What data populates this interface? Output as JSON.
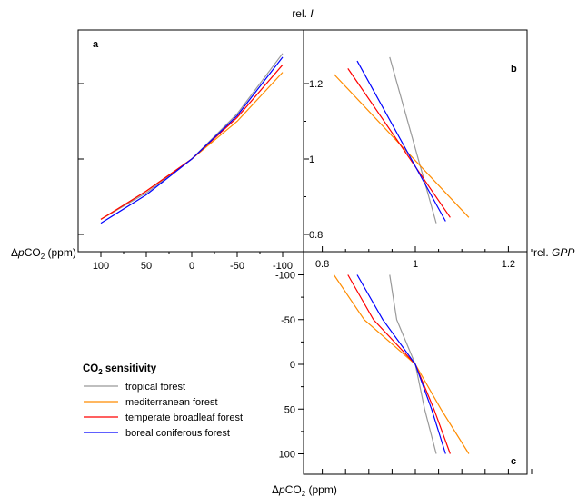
{
  "chart_data": [
    {
      "panel": "a",
      "type": "line",
      "x": [
        100,
        50,
        0,
        -50,
        -100
      ],
      "xlabel": "ΔpCO₂ (ppm)",
      "xticks": [
        "100",
        "50",
        "0",
        "-50",
        "-100"
      ],
      "ylabel": "rel. I",
      "ylim": [
        0.78,
        1.29
      ],
      "series": [
        {
          "name": "tropical forest",
          "values": [
            0.84,
            0.91,
            1.0,
            1.12,
            1.28
          ]
        },
        {
          "name": "mediterranean forest",
          "values": [
            0.84,
            0.915,
            1.0,
            1.1,
            1.23
          ]
        },
        {
          "name": "temperate broadleaf forest",
          "values": [
            0.84,
            0.915,
            1.0,
            1.11,
            1.25
          ]
        },
        {
          "name": "boreal coniferous forest",
          "values": [
            0.83,
            0.905,
            1.0,
            1.115,
            1.27
          ]
        }
      ]
    },
    {
      "panel": "b",
      "type": "line",
      "xlabel": "rel. GPP",
      "ylabel": "rel. I",
      "xticks": [
        "0.8",
        "1",
        "1.2"
      ],
      "yticks": [
        "0.8",
        "1",
        "1.2"
      ],
      "xlim": [
        0.78,
        1.26
      ],
      "ylim": [
        0.78,
        1.29
      ],
      "series": [
        {
          "name": "tropical forest",
          "points": [
            [
              0.945,
              1.27
            ],
            [
              1.045,
              0.83
            ]
          ]
        },
        {
          "name": "mediterranean forest",
          "points": [
            [
              0.825,
              1.225
            ],
            [
              1.115,
              0.845
            ]
          ]
        },
        {
          "name": "temperate broadleaf forest",
          "points": [
            [
              0.855,
              1.24
            ],
            [
              1.075,
              0.845
            ]
          ]
        },
        {
          "name": "boreal coniferous forest",
          "points": [
            [
              0.875,
              1.26
            ],
            [
              1.065,
              0.835
            ]
          ]
        }
      ]
    },
    {
      "panel": "c",
      "type": "line",
      "xlabel": "rel. GPP",
      "ylabel": "ΔpCO₂ (ppm)",
      "yticks": [
        "-100",
        "-50",
        "0",
        "50",
        "100"
      ],
      "xlim": [
        0.78,
        1.26
      ],
      "ylim": [
        -106,
        128
      ],
      "series": [
        {
          "name": "tropical forest",
          "points": [
            [
              0.945,
              -100
            ],
            [
              0.96,
              -50
            ],
            [
              1.0,
              0
            ],
            [
              1.02,
              50
            ],
            [
              1.045,
              100
            ]
          ]
        },
        {
          "name": "mediterranean forest",
          "points": [
            [
              0.825,
              -100
            ],
            [
              0.89,
              -50
            ],
            [
              1.0,
              0
            ],
            [
              1.055,
              50
            ],
            [
              1.115,
              100
            ]
          ]
        },
        {
          "name": "temperate broadleaf forest",
          "points": [
            [
              0.855,
              -100
            ],
            [
              0.91,
              -50
            ],
            [
              1.0,
              0
            ],
            [
              1.04,
              50
            ],
            [
              1.075,
              100
            ]
          ]
        },
        {
          "name": "boreal coniferous forest",
          "points": [
            [
              0.875,
              -100
            ],
            [
              0.93,
              -50
            ],
            [
              1.0,
              0
            ],
            [
              1.035,
              50
            ],
            [
              1.065,
              100
            ]
          ]
        }
      ]
    }
  ],
  "colors": {
    "tropical forest": "#999999",
    "mediterranean forest": "#ff8c00",
    "temperate broadleaf forest": "#ff0000",
    "boreal coniferous forest": "#0000ff"
  },
  "labels": {
    "top_axis": "rel.",
    "top_axis_italic": "I",
    "right_axis": "rel.",
    "right_axis_italic": "GPP",
    "panel_a": "a",
    "panel_b": "b",
    "panel_c": "c",
    "left_axis_delta": "Δ",
    "left_axis_p": "p",
    "left_axis_co": "CO",
    "left_axis_sub": "2",
    "left_axis_unit": " (ppm)",
    "bottom_axis_delta": "Δ",
    "bottom_axis_p": "p",
    "bottom_axis_co": "CO",
    "bottom_axis_sub": "2",
    "bottom_axis_unit": " (ppm)"
  },
  "legend": {
    "title_co": "CO",
    "title_sub": "2",
    "title_rest": " sensitivity",
    "items": [
      "tropical forest",
      "mediterranean forest",
      "temperate broadleaf forest",
      "boreal coniferous forest"
    ]
  }
}
